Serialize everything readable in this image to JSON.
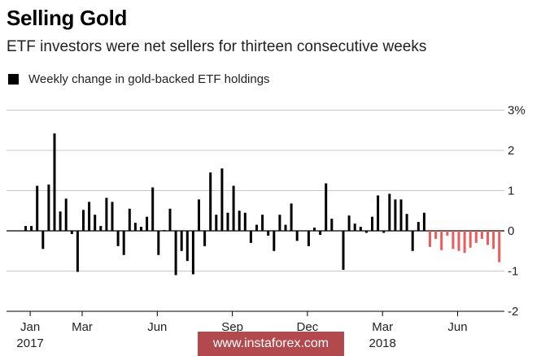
{
  "header": {
    "title": "Selling Gold",
    "subtitle": "ETF investors were net sellers for thirteen consecutive weeks"
  },
  "legend": {
    "label": "Weekly change in gold-backed ETF holdings"
  },
  "watermark": {
    "text": "www.instaforex.com"
  },
  "colors": {
    "positive": "#000000",
    "recent_negative": "#f05a5a",
    "grid": "#c8c8c8"
  },
  "chart_data": {
    "type": "bar",
    "title": "Selling Gold",
    "subtitle": "ETF investors were net sellers for thirteen consecutive weeks",
    "ylim": [
      -2,
      3
    ],
    "y_ticks": [
      {
        "value": 3,
        "label": "3%"
      },
      {
        "value": 2,
        "label": "2"
      },
      {
        "value": 1,
        "label": "1"
      },
      {
        "value": 0,
        "label": "0"
      },
      {
        "value": -1,
        "label": "-1"
      },
      {
        "value": -2,
        "label": "-2"
      }
    ],
    "x_tick_labels": [
      {
        "label": "Jan",
        "sub": "2017",
        "index": 1
      },
      {
        "label": "Mar",
        "sub": "",
        "index": 10
      },
      {
        "label": "Jun",
        "sub": "",
        "index": 23
      },
      {
        "label": "Sep",
        "sub": "",
        "index": 36
      },
      {
        "label": "Dec",
        "sub": "",
        "index": 49
      },
      {
        "label": "Mar",
        "sub": "2018",
        "index": 62
      },
      {
        "label": "Jun",
        "sub": "",
        "index": 75
      }
    ],
    "grid": true,
    "series": [
      {
        "values": [
          0.12,
          0.12,
          1.12,
          -0.45,
          1.15,
          2.42,
          0.48,
          0.8,
          -0.08,
          -1.02,
          0.52,
          0.72,
          0.4,
          0.12,
          0.82,
          0.72,
          -0.38,
          -0.6,
          0.55,
          0.2,
          0.1,
          0.35,
          1.08,
          -0.6,
          0.02,
          0.55,
          -1.1,
          -0.5,
          -0.75,
          -1.08,
          0.78,
          -0.38,
          1.45,
          0.4,
          1.55,
          0.45,
          1.12,
          0.5,
          0.45,
          -0.3,
          0.15,
          0.4,
          -0.12,
          -0.5,
          0.4,
          0.15,
          0.68,
          -0.25,
          0.0,
          -0.38,
          0.08,
          -0.1,
          1.18,
          0.3,
          0.0,
          -0.97,
          0.38,
          0.18,
          0.1,
          -0.05,
          0.35,
          0.88,
          -0.05,
          0.92,
          0.78,
          0.78,
          0.42,
          -0.5,
          0.22,
          0.45,
          -0.4,
          -0.2,
          -0.48,
          -0.12,
          -0.45,
          -0.5,
          -0.55,
          -0.42,
          -0.3,
          -0.2,
          -0.35,
          -0.45,
          -0.78
        ],
        "highlight_from_index": 70
      }
    ]
  }
}
